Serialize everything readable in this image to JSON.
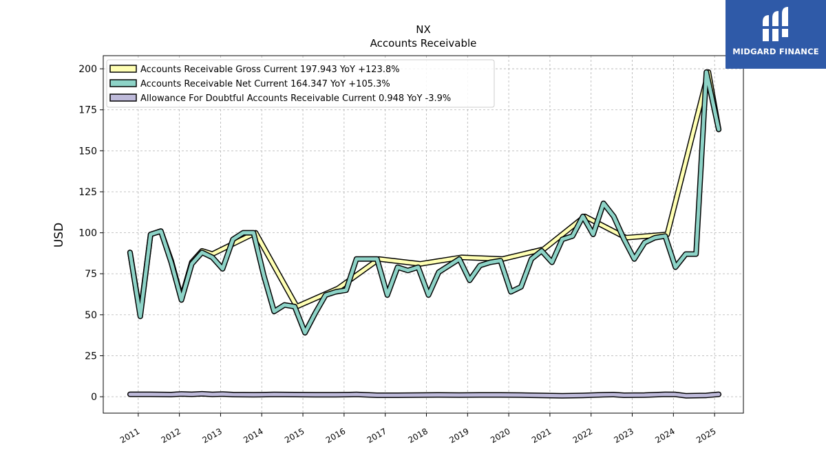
{
  "brand": {
    "name": "MIDGARD FINANCE",
    "color": "#2f5aa8"
  },
  "chart_data": {
    "type": "line",
    "title": "NX",
    "subtitle": "Accounts Receivable",
    "xlabel": "",
    "ylabel": "USD",
    "xlim": [
      2010.15,
      2025.7
    ],
    "ylim": [
      -10,
      208
    ],
    "yticks": [
      0,
      25,
      50,
      75,
      100,
      125,
      150,
      175,
      200
    ],
    "xticks": [
      "2011",
      "2012",
      "2013",
      "2014",
      "2015",
      "2016",
      "2017",
      "2018",
      "2019",
      "2020",
      "2021",
      "2022",
      "2023",
      "2024",
      "2025"
    ],
    "grid": true,
    "legend_position": "top-left",
    "series": [
      {
        "name": "Accounts Receivable Gross Current  197.943 YoY +123.8%",
        "color": "#ffffb3",
        "points": [
          [
            2010.8,
            88
          ],
          [
            2011.05,
            50
          ],
          [
            2011.3,
            99
          ],
          [
            2011.55,
            101
          ],
          [
            2011.8,
            83
          ],
          [
            2012.05,
            60
          ],
          [
            2012.3,
            82
          ],
          [
            2012.55,
            89
          ],
          [
            2012.8,
            87
          ],
          [
            2013.85,
            100
          ],
          [
            2014.85,
            55
          ],
          [
            2015.85,
            66
          ],
          [
            2016.85,
            84
          ],
          [
            2017.85,
            81
          ],
          [
            2018.85,
            85
          ],
          [
            2019.85,
            84
          ],
          [
            2020.85,
            90
          ],
          [
            2021.85,
            110
          ],
          [
            2022.85,
            97
          ],
          [
            2023.85,
            99
          ],
          [
            2024.85,
            198
          ],
          [
            2025.1,
            163
          ]
        ]
      },
      {
        "name": "Accounts Receivable Net Current  164.347 YoY +105.3%",
        "color": "#8dd3c7",
        "points": [
          [
            2010.8,
            88
          ],
          [
            2011.05,
            49
          ],
          [
            2011.3,
            99
          ],
          [
            2011.55,
            101
          ],
          [
            2011.8,
            82
          ],
          [
            2012.05,
            59
          ],
          [
            2012.3,
            81
          ],
          [
            2012.55,
            88
          ],
          [
            2012.8,
            85
          ],
          [
            2013.05,
            78
          ],
          [
            2013.3,
            96
          ],
          [
            2013.55,
            100
          ],
          [
            2013.8,
            100
          ],
          [
            2014.05,
            74
          ],
          [
            2014.3,
            52
          ],
          [
            2014.55,
            56
          ],
          [
            2014.8,
            55
          ],
          [
            2015.05,
            39
          ],
          [
            2015.3,
            51
          ],
          [
            2015.55,
            62
          ],
          [
            2015.8,
            64
          ],
          [
            2016.05,
            65
          ],
          [
            2016.3,
            84
          ],
          [
            2016.55,
            84
          ],
          [
            2016.8,
            84
          ],
          [
            2017.05,
            62
          ],
          [
            2017.3,
            79
          ],
          [
            2017.55,
            77
          ],
          [
            2017.8,
            79
          ],
          [
            2018.05,
            62
          ],
          [
            2018.3,
            76
          ],
          [
            2018.55,
            80
          ],
          [
            2018.8,
            84
          ],
          [
            2019.05,
            71
          ],
          [
            2019.3,
            80
          ],
          [
            2019.55,
            82
          ],
          [
            2019.8,
            83
          ],
          [
            2020.05,
            64
          ],
          [
            2020.3,
            67
          ],
          [
            2020.55,
            84
          ],
          [
            2020.8,
            89
          ],
          [
            2021.05,
            82
          ],
          [
            2021.3,
            96
          ],
          [
            2021.55,
            98
          ],
          [
            2021.8,
            110
          ],
          [
            2022.05,
            99
          ],
          [
            2022.3,
            118
          ],
          [
            2022.55,
            110
          ],
          [
            2022.8,
            96
          ],
          [
            2023.05,
            84
          ],
          [
            2023.3,
            94
          ],
          [
            2023.55,
            97
          ],
          [
            2023.8,
            98
          ],
          [
            2024.05,
            79
          ],
          [
            2024.3,
            87
          ],
          [
            2024.55,
            87
          ],
          [
            2024.8,
            198
          ],
          [
            2025.1,
            163
          ]
        ]
      },
      {
        "name": "Allowance For Doubtful Accounts Receivable Current  0.948 YoY -3.9%",
        "color": "#bebada",
        "points": [
          [
            2010.8,
            1.5
          ],
          [
            2011.3,
            1.5
          ],
          [
            2011.8,
            1.3
          ],
          [
            2012.05,
            1.7
          ],
          [
            2012.3,
            1.5
          ],
          [
            2012.55,
            1.8
          ],
          [
            2012.8,
            1.4
          ],
          [
            2013.05,
            1.6
          ],
          [
            2013.3,
            1.3
          ],
          [
            2013.8,
            1.2
          ],
          [
            2014.3,
            1.4
          ],
          [
            2014.8,
            1.3
          ],
          [
            2015.3,
            1.2
          ],
          [
            2015.8,
            1.2
          ],
          [
            2016.3,
            1.4
          ],
          [
            2016.8,
            0.9
          ],
          [
            2017.3,
            0.9
          ],
          [
            2017.8,
            1.0
          ],
          [
            2018.3,
            1.1
          ],
          [
            2018.8,
            1.0
          ],
          [
            2019.3,
            1.1
          ],
          [
            2019.8,
            1.1
          ],
          [
            2020.3,
            1.0
          ],
          [
            2020.8,
            0.8
          ],
          [
            2021.3,
            0.6
          ],
          [
            2021.8,
            0.8
          ],
          [
            2022.3,
            1.2
          ],
          [
            2022.55,
            1.3
          ],
          [
            2022.8,
            0.9
          ],
          [
            2023.3,
            1.0
          ],
          [
            2023.8,
            1.5
          ],
          [
            2024.05,
            1.4
          ],
          [
            2024.3,
            0.6
          ],
          [
            2024.8,
            0.8
          ],
          [
            2025.1,
            1.5
          ]
        ]
      }
    ]
  }
}
